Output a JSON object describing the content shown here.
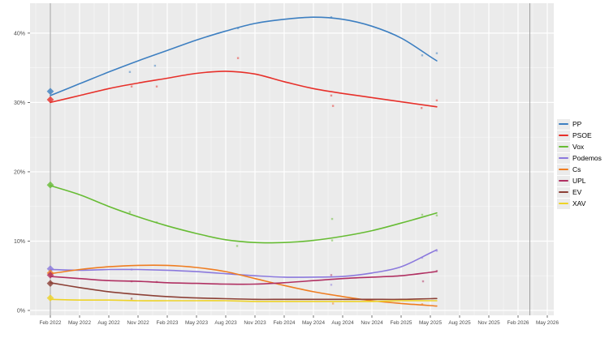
{
  "chart_data": {
    "type": "line",
    "title": "",
    "xlabel": "",
    "ylabel": "",
    "grid": true,
    "legend_position": "right",
    "plot_background": "#ebebeb",
    "gridline_color": "#ffffff",
    "axis_text_color": "#4d4d4d",
    "x_categories": [
      "Feb 2022",
      "May 2022",
      "Aug 2022",
      "Nov 2022",
      "Feb 2023",
      "May 2023",
      "Aug 2023",
      "Nov 2023",
      "Feb 2024",
      "May 2024",
      "Aug 2024",
      "Nov 2024",
      "Feb 2025",
      "May 2025",
      "Aug 2025",
      "Nov 2025",
      "Feb 2026",
      "May 2026"
    ],
    "y_tick_labels": [
      "0%",
      "10%",
      "20%",
      "30%",
      "40%"
    ],
    "y_tick_values": [
      0,
      10,
      20,
      30,
      40
    ],
    "ylim": [
      0,
      44.4
    ],
    "series_note": "values are percent, one per x category from Feb 2022 through May 2025",
    "series": [
      {
        "name": "PP",
        "color": "#3d7fc1",
        "values": [
          31.0,
          32.7,
          34.4,
          36.0,
          37.5,
          39.0,
          40.3,
          41.4,
          42.0,
          42.3,
          42.0,
          41.0,
          39.3,
          36.6
        ]
      },
      {
        "name": "PSOE",
        "color": "#e7302a",
        "values": [
          30.0,
          31.0,
          32.0,
          32.8,
          33.5,
          34.2,
          34.5,
          34.1,
          33.0,
          32.0,
          31.3,
          30.7,
          30.1,
          29.5
        ]
      },
      {
        "name": "Vox",
        "color": "#67bc34",
        "values": [
          18.0,
          16.7,
          15.0,
          13.5,
          12.2,
          11.1,
          10.2,
          9.8,
          9.8,
          10.1,
          10.7,
          11.5,
          12.6,
          13.8
        ]
      },
      {
        "name": "Podemos",
        "color": "#8b79dd",
        "values": [
          5.9,
          5.8,
          5.9,
          5.9,
          5.8,
          5.6,
          5.3,
          5.0,
          4.8,
          4.8,
          4.9,
          5.4,
          6.3,
          8.3
        ]
      },
      {
        "name": "Cs",
        "color": "#ef7d21",
        "values": [
          5.3,
          5.9,
          6.3,
          6.5,
          6.5,
          6.2,
          5.6,
          4.6,
          3.6,
          2.7,
          2.0,
          1.4,
          1.0,
          0.7
        ]
      },
      {
        "name": "UPL",
        "color": "#b03062",
        "values": [
          4.9,
          4.6,
          4.3,
          4.2,
          4.0,
          3.9,
          3.8,
          3.8,
          4.0,
          4.3,
          4.6,
          4.8,
          5.0,
          5.5
        ]
      },
      {
        "name": "EV",
        "color": "#8c4036",
        "values": [
          4.0,
          3.3,
          2.7,
          2.3,
          2.0,
          1.8,
          1.7,
          1.6,
          1.6,
          1.6,
          1.6,
          1.6,
          1.6,
          1.7
        ]
      },
      {
        "name": "XAV",
        "color": "#eed327",
        "values": [
          1.6,
          1.5,
          1.5,
          1.4,
          1.4,
          1.4,
          1.4,
          1.3,
          1.3,
          1.3,
          1.3,
          1.3,
          1.4,
          1.4
        ]
      }
    ],
    "election_markers": [
      {
        "series": "PP",
        "x": 0,
        "y": 31.6
      },
      {
        "series": "PSOE",
        "x": 0,
        "y": 30.4
      },
      {
        "series": "Vox",
        "x": 0,
        "y": 18.1
      },
      {
        "series": "Podemos",
        "x": 0,
        "y": 6.0
      },
      {
        "series": "Cs",
        "x": 0,
        "y": 5.4
      },
      {
        "series": "UPL",
        "x": 0,
        "y": 5.1
      },
      {
        "series": "EV",
        "x": 0,
        "y": 3.9
      },
      {
        "series": "XAV",
        "x": 0,
        "y": 1.8
      }
    ],
    "poll_points": [
      {
        "series": "PP",
        "x": 2.72,
        "y": 34.4
      },
      {
        "series": "PP",
        "x": 3.58,
        "y": 35.3
      },
      {
        "series": "PP",
        "x": 6.42,
        "y": 40.7
      },
      {
        "series": "PP",
        "x": 9.61,
        "y": 42.3
      },
      {
        "series": "PP",
        "x": 12.72,
        "y": 36.8
      },
      {
        "series": "PP",
        "x": 13.22,
        "y": 37.1
      },
      {
        "series": "PSOE",
        "x": 2.78,
        "y": 32.3
      },
      {
        "series": "PSOE",
        "x": 3.64,
        "y": 32.3
      },
      {
        "series": "PSOE",
        "x": 6.42,
        "y": 36.4
      },
      {
        "series": "PSOE",
        "x": 9.61,
        "y": 31.0
      },
      {
        "series": "PSOE",
        "x": 9.67,
        "y": 29.5
      },
      {
        "series": "PSOE",
        "x": 12.7,
        "y": 29.2
      },
      {
        "series": "PSOE",
        "x": 13.22,
        "y": 30.3
      },
      {
        "series": "Vox",
        "x": 2.72,
        "y": 14.2
      },
      {
        "series": "Vox",
        "x": 3.64,
        "y": 12.7
      },
      {
        "series": "Vox",
        "x": 6.39,
        "y": 9.3
      },
      {
        "series": "Vox",
        "x": 9.64,
        "y": 13.2
      },
      {
        "series": "Vox",
        "x": 9.64,
        "y": 10.1
      },
      {
        "series": "Vox",
        "x": 12.72,
        "y": 13.8
      },
      {
        "series": "Vox",
        "x": 13.22,
        "y": 13.7
      },
      {
        "series": "Podemos",
        "x": 2.78,
        "y": 5.9
      },
      {
        "series": "Podemos",
        "x": 9.61,
        "y": 3.7
      },
      {
        "series": "Podemos",
        "x": 12.72,
        "y": 7.6
      },
      {
        "series": "Podemos",
        "x": 13.22,
        "y": 8.6
      },
      {
        "series": "Cs",
        "x": 9.67,
        "y": 1.0
      },
      {
        "series": "Cs",
        "x": 12.72,
        "y": 0.9
      },
      {
        "series": "UPL",
        "x": 2.78,
        "y": 4.2
      },
      {
        "series": "UPL",
        "x": 3.64,
        "y": 4.1
      },
      {
        "series": "UPL",
        "x": 9.61,
        "y": 5.1
      },
      {
        "series": "UPL",
        "x": 12.75,
        "y": 4.2
      },
      {
        "series": "UPL",
        "x": 13.22,
        "y": 5.7
      },
      {
        "series": "EV",
        "x": 2.78,
        "y": 1.7
      }
    ],
    "reference_lines_x_index": [
      0,
      16.4
    ]
  },
  "legend": {
    "items": [
      {
        "label": "PP",
        "color": "#3d7fc1"
      },
      {
        "label": "PSOE",
        "color": "#e7302a"
      },
      {
        "label": "Vox",
        "color": "#67bc34"
      },
      {
        "label": "Podemos",
        "color": "#8b79dd"
      },
      {
        "label": "Cs",
        "color": "#ef7d21"
      },
      {
        "label": "UPL",
        "color": "#b03062"
      },
      {
        "label": "EV",
        "color": "#8c4036"
      },
      {
        "label": "XAV",
        "color": "#eed327"
      }
    ]
  }
}
